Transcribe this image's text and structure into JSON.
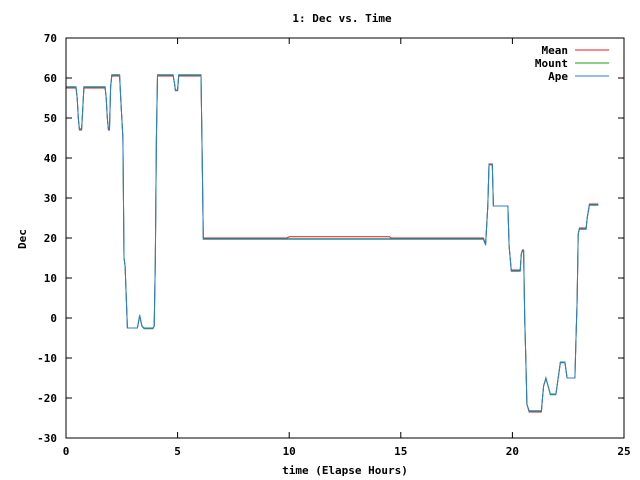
{
  "chart_data": {
    "type": "line",
    "title": "1: Dec vs. Time",
    "xlabel": "time (Elapse Hours)",
    "ylabel": "Dec",
    "xlim": [
      0,
      25
    ],
    "ylim": [
      -30,
      70
    ],
    "xticks": [
      "0",
      "5",
      "10",
      "15",
      "20",
      "25"
    ],
    "yticks": [
      "-30",
      "-20",
      "-10",
      "0",
      "10",
      "20",
      "30",
      "40",
      "50",
      "60",
      "70"
    ],
    "grid": false,
    "legend_position": "top-right",
    "series": [
      {
        "name": "Mean",
        "color": "#e41a1c",
        "points": [
          [
            0,
            57.5
          ],
          [
            0.45,
            57.5
          ],
          [
            0.5,
            55
          ],
          [
            0.55,
            50
          ],
          [
            0.6,
            47
          ],
          [
            0.7,
            47
          ],
          [
            0.75,
            52
          ],
          [
            0.8,
            57.5
          ],
          [
            1.75,
            57.5
          ],
          [
            1.8,
            55
          ],
          [
            1.85,
            50
          ],
          [
            1.9,
            47
          ],
          [
            1.95,
            47
          ],
          [
            2.0,
            57.5
          ],
          [
            2.05,
            60.5
          ],
          [
            2.4,
            60.5
          ],
          [
            2.45,
            55
          ],
          [
            2.55,
            45
          ],
          [
            2.6,
            15
          ],
          [
            2.65,
            13
          ],
          [
            2.75,
            -2.5
          ],
          [
            3.2,
            -2.5
          ],
          [
            3.3,
            0.5
          ],
          [
            3.4,
            -2
          ],
          [
            3.5,
            -2.5
          ],
          [
            3.9,
            -2.5
          ],
          [
            3.95,
            -2
          ],
          [
            4.0,
            14
          ],
          [
            4.05,
            45
          ],
          [
            4.1,
            60.5
          ],
          [
            4.8,
            60.5
          ],
          [
            4.85,
            59
          ],
          [
            4.9,
            57
          ],
          [
            5.0,
            57
          ],
          [
            5.05,
            60.5
          ],
          [
            6.05,
            60.5
          ],
          [
            6.1,
            40
          ],
          [
            6.15,
            20
          ],
          [
            9.9,
            20
          ],
          [
            10.0,
            20.3
          ],
          [
            14.5,
            20.3
          ],
          [
            14.55,
            20
          ],
          [
            18.7,
            20
          ],
          [
            18.8,
            18.5
          ],
          [
            18.9,
            28
          ],
          [
            18.95,
            38.5
          ],
          [
            19.1,
            38.5
          ],
          [
            19.15,
            28
          ],
          [
            19.8,
            28
          ],
          [
            19.85,
            18
          ],
          [
            19.95,
            12
          ],
          [
            20.35,
            12
          ],
          [
            20.4,
            16
          ],
          [
            20.45,
            17
          ],
          [
            20.5,
            17
          ],
          [
            20.55,
            0
          ],
          [
            20.6,
            -10
          ],
          [
            20.65,
            -21.5
          ],
          [
            20.75,
            -23.5
          ],
          [
            21.3,
            -23.5
          ],
          [
            21.35,
            -20
          ],
          [
            21.4,
            -17
          ],
          [
            21.5,
            -15
          ],
          [
            21.6,
            -17
          ],
          [
            21.7,
            -19
          ],
          [
            21.95,
            -19
          ],
          [
            22.05,
            -15
          ],
          [
            22.15,
            -11
          ],
          [
            22.35,
            -11
          ],
          [
            22.45,
            -15
          ],
          [
            22.8,
            -15
          ],
          [
            22.85,
            -5
          ],
          [
            22.9,
            4
          ],
          [
            22.95,
            21
          ],
          [
            23.0,
            22.5
          ],
          [
            23.3,
            22.5
          ],
          [
            23.35,
            25
          ],
          [
            23.45,
            28.5
          ],
          [
            23.85,
            28.5
          ]
        ]
      },
      {
        "name": "Mount",
        "color": "#1a9e1a",
        "points": [
          [
            0,
            57.8
          ],
          [
            0.45,
            57.8
          ],
          [
            0.5,
            55
          ],
          [
            0.55,
            50
          ],
          [
            0.6,
            47.3
          ],
          [
            0.7,
            47.3
          ],
          [
            0.75,
            52
          ],
          [
            0.8,
            57.8
          ],
          [
            1.75,
            57.8
          ],
          [
            1.8,
            55
          ],
          [
            1.85,
            50
          ],
          [
            1.9,
            47.3
          ],
          [
            1.95,
            47.3
          ],
          [
            2.0,
            57.8
          ],
          [
            2.05,
            60.8
          ],
          [
            2.4,
            60.8
          ],
          [
            2.45,
            55
          ],
          [
            2.55,
            45
          ],
          [
            2.6,
            15
          ],
          [
            2.65,
            13
          ],
          [
            2.75,
            -2.5
          ],
          [
            3.2,
            -2.5
          ],
          [
            3.3,
            0.5
          ],
          [
            3.4,
            -2
          ],
          [
            3.5,
            -2.5
          ],
          [
            3.9,
            -2.5
          ],
          [
            3.95,
            -2
          ],
          [
            4.0,
            14
          ],
          [
            4.05,
            45
          ],
          [
            4.1,
            60.8
          ],
          [
            4.8,
            60.8
          ],
          [
            4.85,
            59
          ],
          [
            4.9,
            57
          ],
          [
            5.0,
            57
          ],
          [
            5.05,
            60.8
          ],
          [
            6.05,
            60.8
          ],
          [
            6.1,
            40
          ],
          [
            6.15,
            19.8
          ],
          [
            18.7,
            19.8
          ],
          [
            18.8,
            18.3
          ],
          [
            18.9,
            28
          ],
          [
            18.95,
            38.3
          ],
          [
            19.1,
            38.3
          ],
          [
            19.15,
            28
          ],
          [
            19.8,
            28
          ],
          [
            19.85,
            18
          ],
          [
            19.95,
            11.8
          ],
          [
            20.35,
            11.8
          ],
          [
            20.4,
            16
          ],
          [
            20.45,
            16.8
          ],
          [
            20.5,
            16.8
          ],
          [
            20.55,
            0
          ],
          [
            20.6,
            -10
          ],
          [
            20.65,
            -21.5
          ],
          [
            20.75,
            -23.2
          ],
          [
            21.3,
            -23.2
          ],
          [
            21.35,
            -20
          ],
          [
            21.4,
            -17
          ],
          [
            21.5,
            -15
          ],
          [
            21.6,
            -17
          ],
          [
            21.7,
            -19
          ],
          [
            21.95,
            -19
          ],
          [
            22.05,
            -15
          ],
          [
            22.15,
            -11
          ],
          [
            22.35,
            -11
          ],
          [
            22.45,
            -15
          ],
          [
            22.8,
            -15
          ],
          [
            22.85,
            -5
          ],
          [
            22.9,
            4
          ],
          [
            22.95,
            21
          ],
          [
            23.0,
            22.2
          ],
          [
            23.3,
            22.2
          ],
          [
            23.35,
            25
          ],
          [
            23.45,
            28.2
          ],
          [
            23.85,
            28.2
          ]
        ]
      },
      {
        "name": "Ape",
        "color": "#2a7fd4",
        "points": [
          [
            0,
            57.7
          ],
          [
            0.45,
            57.7
          ],
          [
            0.5,
            55
          ],
          [
            0.55,
            50
          ],
          [
            0.6,
            47.2
          ],
          [
            0.7,
            47.2
          ],
          [
            0.75,
            52
          ],
          [
            0.8,
            57.7
          ],
          [
            1.75,
            57.7
          ],
          [
            1.8,
            55
          ],
          [
            1.85,
            50
          ],
          [
            1.9,
            47.2
          ],
          [
            1.95,
            47.2
          ],
          [
            2.0,
            57.7
          ],
          [
            2.05,
            60.7
          ],
          [
            2.4,
            60.7
          ],
          [
            2.45,
            55
          ],
          [
            2.55,
            45
          ],
          [
            2.6,
            15
          ],
          [
            2.65,
            13
          ],
          [
            2.75,
            -2.5
          ],
          [
            3.2,
            -2.5
          ],
          [
            3.3,
            0.8
          ],
          [
            3.4,
            -2
          ],
          [
            3.5,
            -2.7
          ],
          [
            3.9,
            -2.7
          ],
          [
            3.95,
            -2
          ],
          [
            4.0,
            14
          ],
          [
            4.05,
            45
          ],
          [
            4.1,
            60.7
          ],
          [
            4.8,
            60.7
          ],
          [
            4.85,
            59
          ],
          [
            4.9,
            56.8
          ],
          [
            5.0,
            56.8
          ],
          [
            5.05,
            60.7
          ],
          [
            6.05,
            60.7
          ],
          [
            6.1,
            40
          ],
          [
            6.15,
            19.7
          ],
          [
            18.7,
            19.7
          ],
          [
            18.8,
            18.2
          ],
          [
            18.9,
            28
          ],
          [
            18.95,
            38.3
          ],
          [
            19.1,
            38.3
          ],
          [
            19.15,
            28
          ],
          [
            19.8,
            28
          ],
          [
            19.85,
            18
          ],
          [
            19.95,
            11.7
          ],
          [
            20.35,
            11.7
          ],
          [
            20.4,
            16
          ],
          [
            20.45,
            16.7
          ],
          [
            20.5,
            16.7
          ],
          [
            20.55,
            0
          ],
          [
            20.6,
            -10
          ],
          [
            20.65,
            -21.5
          ],
          [
            20.75,
            -23.3
          ],
          [
            21.3,
            -23.3
          ],
          [
            21.35,
            -20
          ],
          [
            21.4,
            -17
          ],
          [
            21.5,
            -15.2
          ],
          [
            21.6,
            -17
          ],
          [
            21.7,
            -19.2
          ],
          [
            21.95,
            -19.2
          ],
          [
            22.05,
            -15
          ],
          [
            22.15,
            -11.2
          ],
          [
            22.35,
            -11.2
          ],
          [
            22.45,
            -15
          ],
          [
            22.8,
            -15
          ],
          [
            22.85,
            -5
          ],
          [
            22.9,
            4
          ],
          [
            22.95,
            21
          ],
          [
            23.0,
            22.3
          ],
          [
            23.3,
            22.3
          ],
          [
            23.35,
            25
          ],
          [
            23.45,
            28.3
          ],
          [
            23.85,
            28.3
          ]
        ]
      }
    ]
  }
}
